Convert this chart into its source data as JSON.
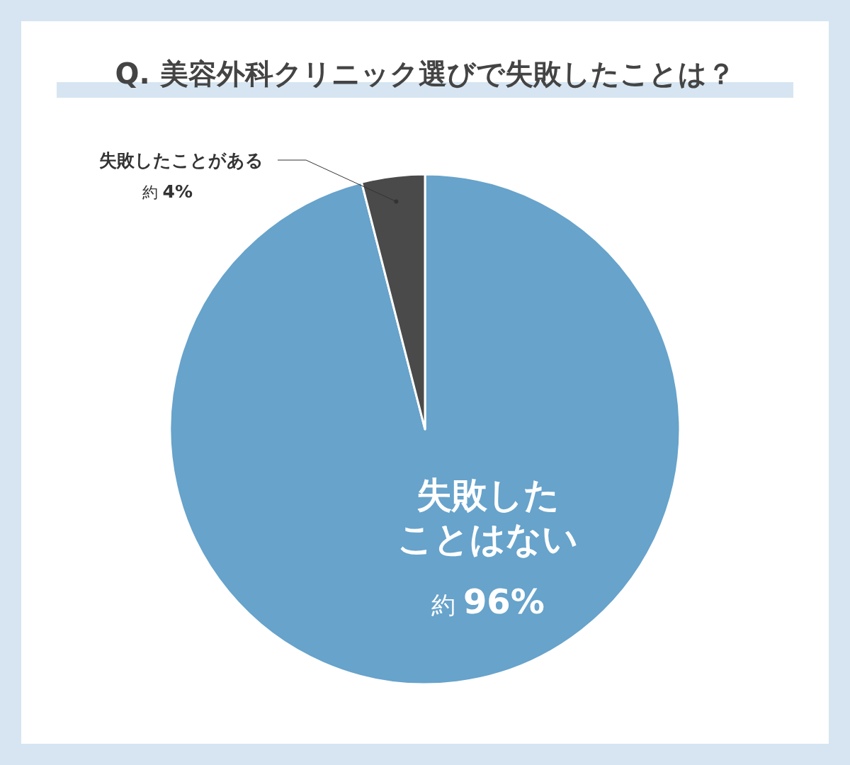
{
  "chart_data": {
    "type": "pie",
    "title": "Q. 美容外科クリニック選びで失敗したことは？",
    "categories": [
      "失敗したことはない",
      "失敗したことがある"
    ],
    "values": [
      96,
      4
    ],
    "colors": [
      "#67a3cb",
      "#4a4a4a"
    ],
    "value_labels": [
      "約 96%",
      "約 4%"
    ]
  }
}
